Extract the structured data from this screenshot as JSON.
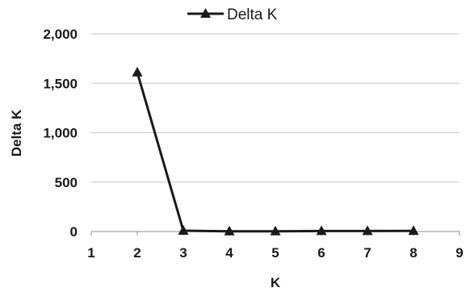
{
  "chart_data": {
    "type": "line",
    "title": "",
    "xlabel": "K",
    "ylabel": "Delta K",
    "x_ticks": [
      "1",
      "2",
      "3",
      "4",
      "5",
      "6",
      "7",
      "8",
      "9"
    ],
    "y_ticks": [
      "0",
      "500",
      "1,000",
      "1,500",
      "2,000"
    ],
    "xlim": [
      1,
      9
    ],
    "ylim": [
      0,
      2000
    ],
    "grid": "horizontal",
    "legend_position": "top-center",
    "series": [
      {
        "name": "Delta K",
        "marker": "triangle",
        "color": "#1a1a1a",
        "x": [
          2,
          3,
          4,
          5,
          6,
          7,
          8
        ],
        "y": [
          1610,
          8,
          2,
          2,
          5,
          5,
          6
        ]
      }
    ]
  }
}
